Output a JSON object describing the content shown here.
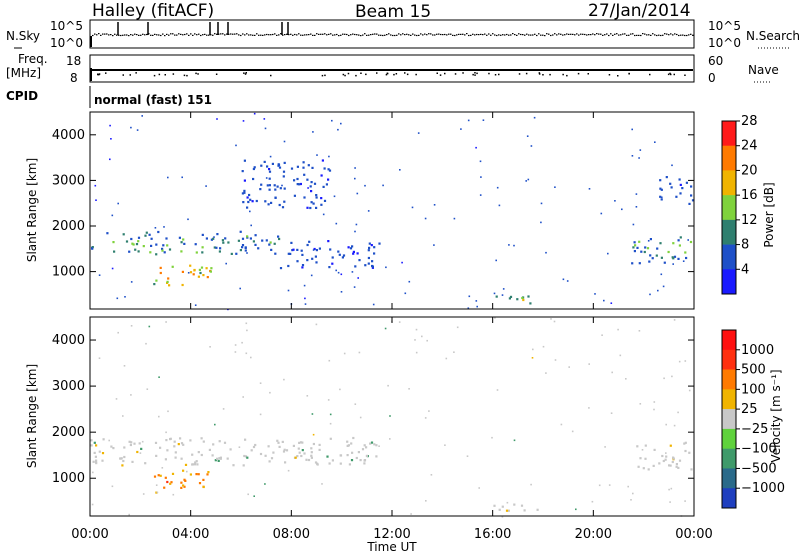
{
  "header": {
    "station": "Halley (fitACF)",
    "beam": "Beam 15",
    "date": "27/Jan/2014"
  },
  "panel_labels": {
    "nsky": "N.Sky",
    "nsky_top": "10^5",
    "nsky_bottom": "10^0",
    "nsearch": "N.Search",
    "nsearch_top": "10^5",
    "nsearch_bottom": "10^0",
    "freq": "Freq.",
    "freq_unit": "[MHz]",
    "freq_top": "18",
    "freq_bottom": "8",
    "nave": "Nave",
    "nave_top": "60",
    "nave_bottom": "0",
    "cpid": "CPID",
    "cpid_value": "normal (fast) 151"
  },
  "chart_data": [
    {
      "type": "heatmap",
      "name": "power",
      "ylabel": "Slant Range [km]",
      "xlabel": "",
      "ylim": [
        180,
        4500
      ],
      "yticks": [
        "1000",
        "2000",
        "3000",
        "4000"
      ],
      "xticks": [
        "00:00",
        "04:00",
        "08:00",
        "12:00",
        "16:00",
        "20:00",
        "00:00"
      ],
      "colorbar": {
        "label": "Power [dB]",
        "ticks": [
          "4",
          "8",
          "12",
          "16",
          "20",
          "24",
          "28"
        ],
        "colors": [
          "#1a1aff",
          "#1e50c8",
          "#2f7f6f",
          "#7fd23c",
          "#f0b400",
          "#ff7a00",
          "#ff1a1a"
        ]
      },
      "echo_regions": [
        {
          "t0": 0.0,
          "t1": 7.5,
          "r0": 1400,
          "r1": 1900,
          "level": "low-mid"
        },
        {
          "t0": 2.5,
          "t1": 4.8,
          "r0": 700,
          "r1": 1200,
          "level": "high"
        },
        {
          "t0": 6.0,
          "t1": 9.5,
          "r0": 2400,
          "r1": 3500,
          "level": "low"
        },
        {
          "t0": 7.5,
          "t1": 11.5,
          "r0": 1100,
          "r1": 1700,
          "level": "low"
        },
        {
          "t0": 16.0,
          "t1": 18.0,
          "r0": 300,
          "r1": 500,
          "level": "mid"
        },
        {
          "t0": 21.5,
          "t1": 24.0,
          "r0": 1200,
          "r1": 1800,
          "level": "low-mid"
        },
        {
          "t0": 22.5,
          "t1": 24.0,
          "r0": 2500,
          "r1": 3100,
          "level": "low"
        }
      ]
    },
    {
      "type": "heatmap",
      "name": "velocity",
      "ylabel": "Slant Range [km]",
      "xlabel": "Time UT",
      "ylim": [
        180,
        4500
      ],
      "yticks": [
        "1000",
        "2000",
        "3000",
        "4000"
      ],
      "xticks": [
        "00:00",
        "04:00",
        "08:00",
        "12:00",
        "16:00",
        "20:00",
        "00:00"
      ],
      "colorbar": {
        "label": "Velocity [m s⁻¹]",
        "ticks": [
          "1000",
          "500",
          "100",
          "25",
          "−25",
          "−100",
          "−500",
          "−1000"
        ],
        "colors": [
          "#1f3fbf",
          "#2a6a8a",
          "#3f9a6a",
          "#5fd23c",
          "#c8c8c8",
          "#f0b400",
          "#ff7a00",
          "#ff3010",
          "#ff1010"
        ]
      },
      "echo_regions": [
        {
          "t0": 0.0,
          "t1": 11.5,
          "r0": 1300,
          "r1": 1900,
          "level": "ground"
        },
        {
          "t0": 2.5,
          "t1": 4.8,
          "r0": 700,
          "r1": 1200,
          "level": "negative"
        },
        {
          "t0": 21.5,
          "t1": 24.0,
          "r0": 1200,
          "r1": 1800,
          "level": "ground"
        },
        {
          "t0": 16.0,
          "t1": 18.0,
          "r0": 300,
          "r1": 500,
          "level": "ground"
        }
      ]
    }
  ]
}
